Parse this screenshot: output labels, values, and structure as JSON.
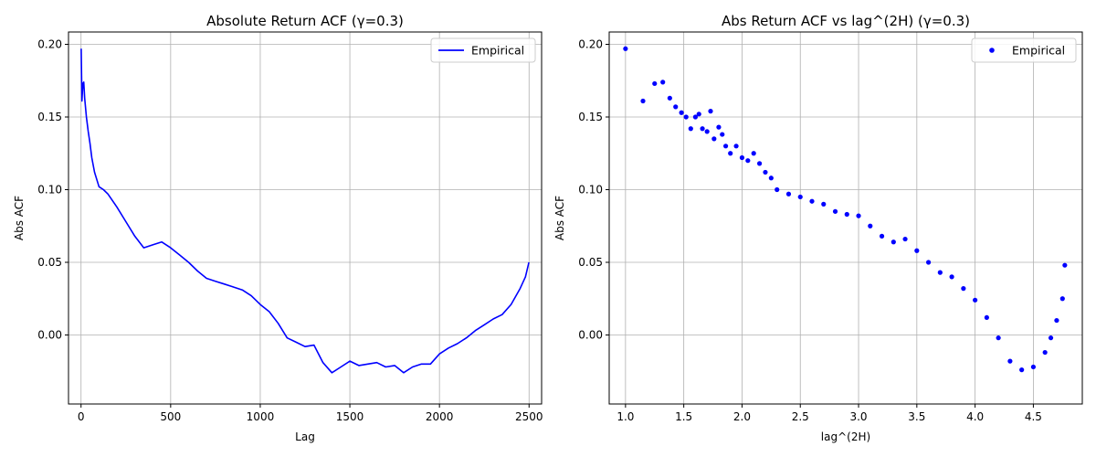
{
  "colors": {
    "series": "#0000ff",
    "grid": "#b0b0b0",
    "axis": "#000000",
    "legend_border": "#cccccc"
  },
  "chart_data": [
    {
      "type": "line",
      "title": "Absolute Return ACF (γ=0.3)",
      "xlabel": "Lag",
      "ylabel": "Abs ACF",
      "xlim": [
        -70,
        2570
      ],
      "ylim": [
        -0.0475,
        0.2085
      ],
      "xticks": [
        0,
        500,
        1000,
        1500,
        2000,
        2500
      ],
      "xtick_labels": [
        "0",
        "500",
        "1000",
        "1500",
        "2000",
        "2500"
      ],
      "yticks": [
        0.0,
        0.05,
        0.1,
        0.15,
        0.2
      ],
      "ytick_labels": [
        "0.00",
        "0.05",
        "0.10",
        "0.15",
        "0.20"
      ],
      "grid": true,
      "legend_position": "top-right",
      "series": [
        {
          "name": "Empirical",
          "style": "line",
          "color": "#0000ff",
          "x": [
            1,
            5,
            10,
            15,
            20,
            30,
            40,
            50,
            60,
            75,
            100,
            125,
            150,
            200,
            250,
            300,
            350,
            400,
            450,
            500,
            550,
            600,
            650,
            700,
            750,
            800,
            850,
            900,
            950,
            1000,
            1050,
            1100,
            1150,
            1200,
            1250,
            1300,
            1350,
            1400,
            1450,
            1500,
            1550,
            1600,
            1650,
            1700,
            1750,
            1800,
            1850,
            1900,
            1950,
            2000,
            2050,
            2100,
            2150,
            2200,
            2250,
            2300,
            2350,
            2400,
            2450,
            2480,
            2499
          ],
          "values": [
            0.197,
            0.161,
            0.173,
            0.174,
            0.163,
            0.15,
            0.14,
            0.132,
            0.122,
            0.112,
            0.102,
            0.1,
            0.097,
            0.088,
            0.078,
            0.068,
            0.06,
            0.062,
            0.064,
            0.06,
            0.055,
            0.05,
            0.044,
            0.039,
            0.037,
            0.035,
            0.033,
            0.031,
            0.027,
            0.021,
            0.016,
            0.008,
            -0.002,
            -0.005,
            -0.008,
            -0.007,
            -0.019,
            -0.026,
            -0.022,
            -0.018,
            -0.021,
            -0.02,
            -0.019,
            -0.022,
            -0.021,
            -0.026,
            -0.022,
            -0.02,
            -0.02,
            -0.013,
            -0.009,
            -0.006,
            -0.002,
            0.003,
            0.007,
            0.011,
            0.014,
            0.021,
            0.032,
            0.04,
            0.05
          ]
        }
      ]
    },
    {
      "type": "scatter",
      "title": "Abs Return ACF vs lag^(2H) (γ=0.3)",
      "xlabel": "lag^(2H)",
      "ylabel": "Abs ACF",
      "xlim": [
        0.86,
        4.92
      ],
      "ylim": [
        -0.0475,
        0.2085
      ],
      "xticks": [
        1.0,
        1.5,
        2.0,
        2.5,
        3.0,
        3.5,
        4.0,
        4.5
      ],
      "xtick_labels": [
        "1.0",
        "1.5",
        "2.0",
        "2.5",
        "3.0",
        "3.5",
        "4.0",
        "4.5"
      ],
      "yticks": [
        0.0,
        0.05,
        0.1,
        0.15,
        0.2
      ],
      "ytick_labels": [
        "0.00",
        "0.05",
        "0.10",
        "0.15",
        "0.20"
      ],
      "grid": true,
      "legend_position": "top-right",
      "series": [
        {
          "name": "Empirical",
          "style": "dots",
          "color": "#0000ff",
          "x": [
            1.0,
            1.15,
            1.25,
            1.32,
            1.38,
            1.43,
            1.48,
            1.52,
            1.56,
            1.6,
            1.63,
            1.66,
            1.7,
            1.73,
            1.76,
            1.8,
            1.83,
            1.86,
            1.9,
            1.95,
            2.0,
            2.05,
            2.1,
            2.15,
            2.2,
            2.25,
            2.3,
            2.4,
            2.5,
            2.6,
            2.7,
            2.8,
            2.9,
            3.0,
            3.1,
            3.2,
            3.3,
            3.4,
            3.5,
            3.6,
            3.7,
            3.8,
            3.9,
            4.0,
            4.1,
            4.2,
            4.3,
            4.4,
            4.5,
            4.6,
            4.65,
            4.7,
            4.75,
            4.77
          ],
          "values": [
            0.197,
            0.161,
            0.173,
            0.174,
            0.163,
            0.157,
            0.153,
            0.15,
            0.142,
            0.15,
            0.152,
            0.142,
            0.14,
            0.154,
            0.135,
            0.143,
            0.138,
            0.13,
            0.125,
            0.13,
            0.122,
            0.12,
            0.125,
            0.118,
            0.112,
            0.108,
            0.1,
            0.097,
            0.095,
            0.092,
            0.09,
            0.085,
            0.083,
            0.082,
            0.075,
            0.068,
            0.064,
            0.066,
            0.058,
            0.05,
            0.043,
            0.04,
            0.032,
            0.024,
            0.012,
            -0.002,
            -0.018,
            -0.024,
            -0.022,
            -0.012,
            -0.002,
            0.01,
            0.025,
            0.048
          ]
        }
      ]
    }
  ]
}
